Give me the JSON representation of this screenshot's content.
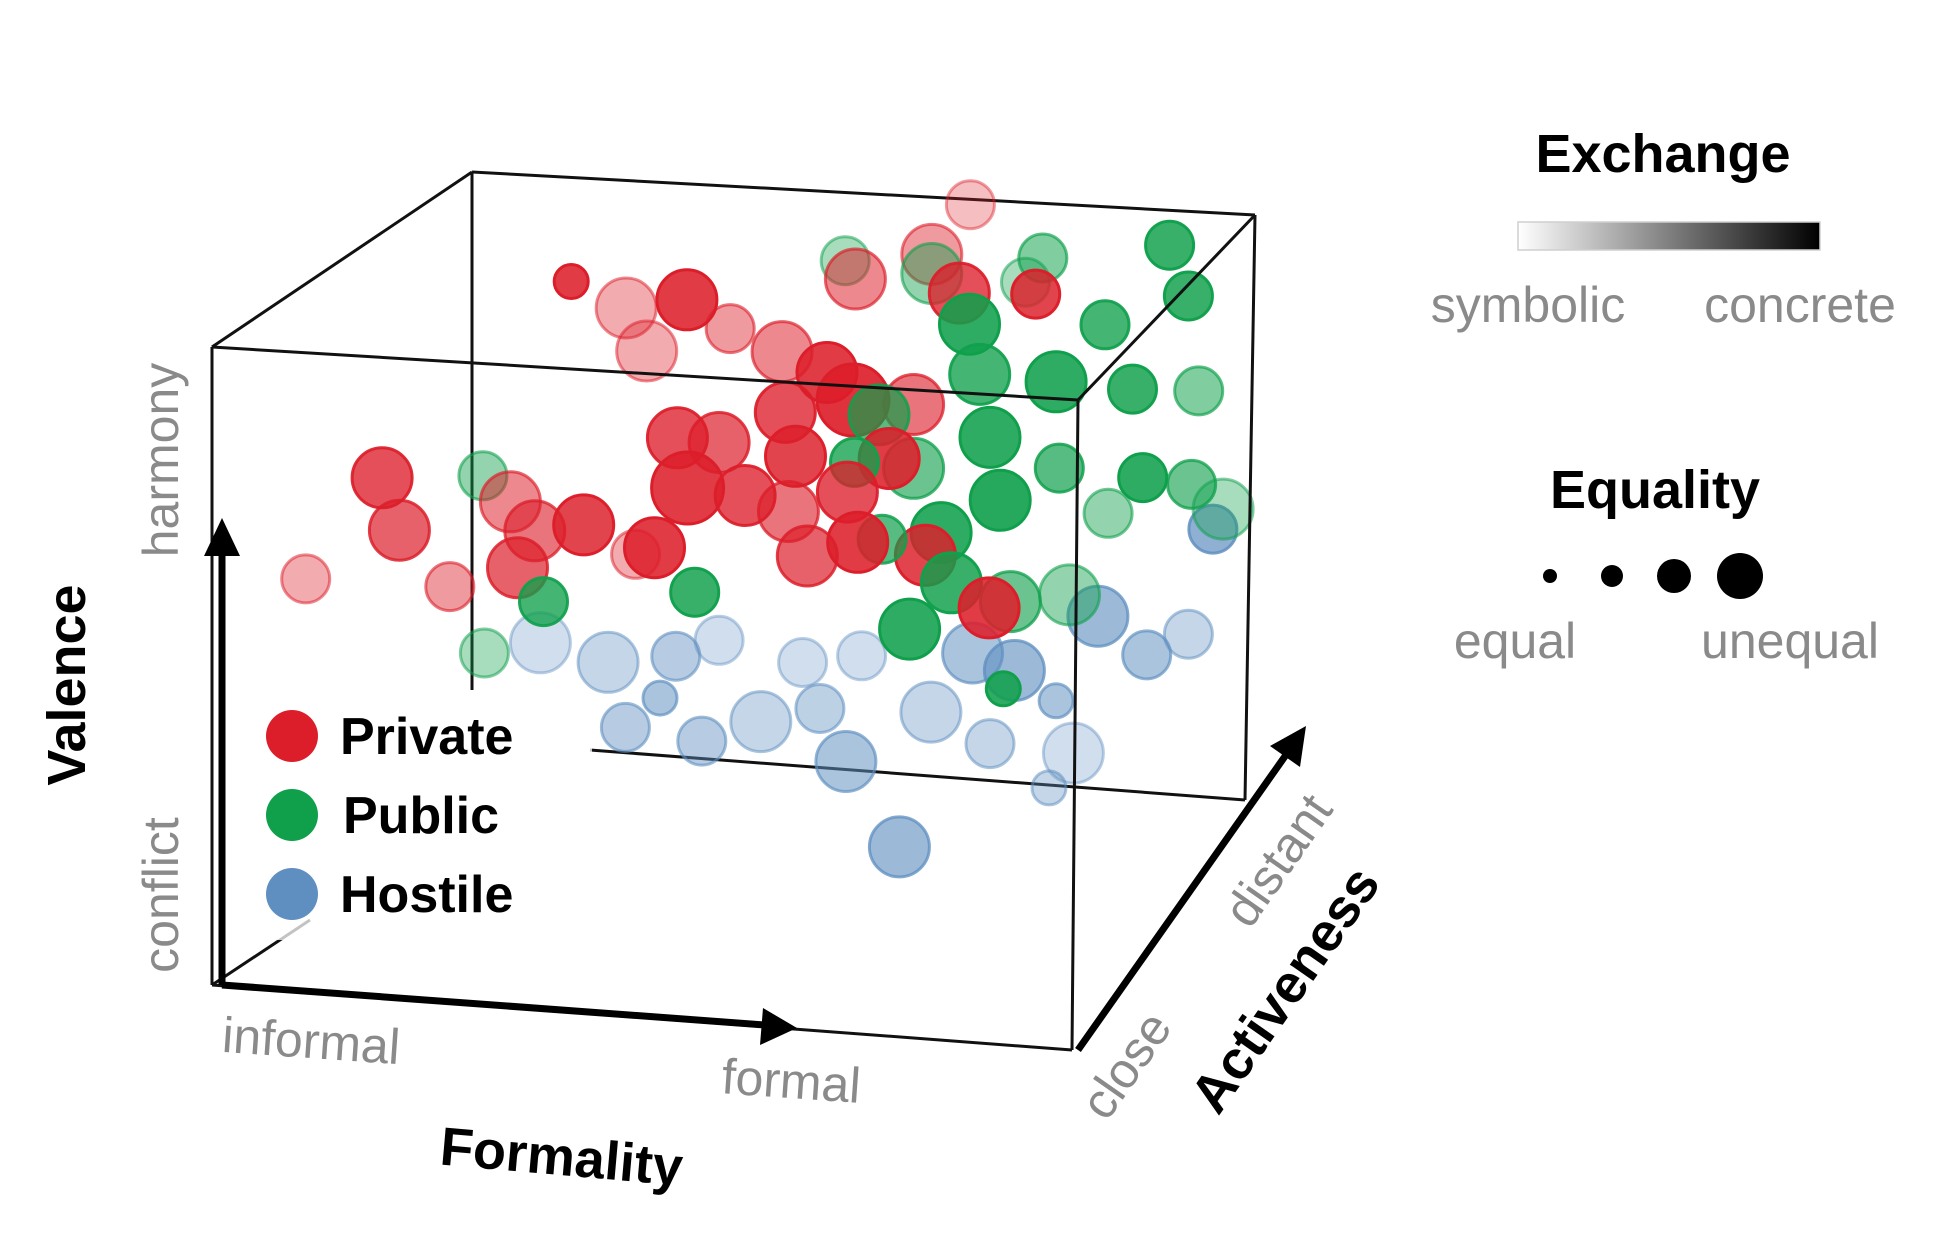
{
  "chart_data": {
    "type": "scatter",
    "subtype": "3d-bubble",
    "colors": {
      "Private": "#dc1e2a",
      "Public": "#10a04c",
      "Hostile": "#5f8fc0"
    },
    "axes": {
      "x": {
        "title": "Formality",
        "low": "informal",
        "high": "formal",
        "range": [
          0,
          1
        ]
      },
      "y": {
        "title": "Valence",
        "low": "conflict",
        "high": "harmony",
        "range": [
          0,
          1
        ]
      },
      "z": {
        "title": "Activeness",
        "low": "close",
        "high": "distant",
        "range": [
          0,
          1
        ]
      }
    },
    "legend": {
      "categories": [
        "Private",
        "Public",
        "Hostile"
      ],
      "exchange": {
        "title": "Exchange",
        "low": "symbolic",
        "high": "concrete"
      },
      "equality": {
        "title": "Equality",
        "low": "equal",
        "high": "unequal",
        "levels": [
          1,
          2,
          3,
          4
        ]
      }
    },
    "grid": false,
    "series": [
      {
        "name": "Private",
        "points": [
          {
            "x": 0.18,
            "y": 0.78,
            "z": 0.1,
            "size": 3,
            "exchange": 0.8
          },
          {
            "x": 0.2,
            "y": 0.7,
            "z": 0.1,
            "size": 3,
            "exchange": 0.7
          },
          {
            "x": 0.1,
            "y": 0.63,
            "z": 0.05,
            "size": 2,
            "exchange": 0.3
          },
          {
            "x": 0.32,
            "y": 0.74,
            "z": 0.15,
            "size": 3,
            "exchange": 0.5
          },
          {
            "x": 0.34,
            "y": 0.68,
            "z": 0.2,
            "size": 3,
            "exchange": 0.6
          },
          {
            "x": 0.32,
            "y": 0.62,
            "z": 0.2,
            "size": 3,
            "exchange": 0.7
          },
          {
            "x": 0.38,
            "y": 0.66,
            "z": 0.3,
            "size": 3,
            "exchange": 0.85
          },
          {
            "x": 0.3,
            "y": 0.9,
            "z": 0.7,
            "size": 1,
            "exchange": 0.9
          },
          {
            "x": 0.45,
            "y": 0.92,
            "z": 0.6,
            "size": 3,
            "exchange": 0.9
          },
          {
            "x": 0.42,
            "y": 0.87,
            "z": 0.5,
            "size": 3,
            "exchange": 0.3
          },
          {
            "x": 0.48,
            "y": 0.79,
            "z": 0.35,
            "size": 3,
            "exchange": 0.8
          },
          {
            "x": 0.5,
            "y": 0.73,
            "z": 0.3,
            "size": 4,
            "exchange": 0.9
          },
          {
            "x": 0.52,
            "y": 0.77,
            "z": 0.4,
            "size": 3,
            "exchange": 0.7
          },
          {
            "x": 0.55,
            "y": 0.69,
            "z": 0.4,
            "size": 3,
            "exchange": 0.8
          },
          {
            "x": 0.47,
            "y": 0.65,
            "z": 0.25,
            "size": 3,
            "exchange": 0.9
          },
          {
            "x": 0.58,
            "y": 0.79,
            "z": 0.5,
            "size": 3,
            "exchange": 0.8
          },
          {
            "x": 0.6,
            "y": 0.74,
            "z": 0.45,
            "size": 3,
            "exchange": 0.85
          },
          {
            "x": 0.62,
            "y": 0.84,
            "z": 0.55,
            "size": 3,
            "exchange": 0.9
          },
          {
            "x": 0.65,
            "y": 0.8,
            "z": 0.55,
            "size": 4,
            "exchange": 0.95
          },
          {
            "x": 0.66,
            "y": 0.69,
            "z": 0.45,
            "size": 3,
            "exchange": 0.8
          },
          {
            "x": 0.63,
            "y": 0.62,
            "z": 0.35,
            "size": 3,
            "exchange": 0.7
          },
          {
            "x": 0.7,
            "y": 0.73,
            "z": 0.5,
            "size": 3,
            "exchange": 0.9
          },
          {
            "x": 0.68,
            "y": 0.63,
            "z": 0.4,
            "size": 3,
            "exchange": 0.9
          },
          {
            "x": 0.75,
            "y": 0.6,
            "z": 0.45,
            "size": 3,
            "exchange": 0.85
          },
          {
            "x": 0.62,
            "y": 0.92,
            "z": 0.75,
            "size": 3,
            "exchange": 0.5
          },
          {
            "x": 0.7,
            "y": 0.95,
            "z": 0.8,
            "size": 3,
            "exchange": 0.4
          },
          {
            "x": 0.72,
            "y": 0.98,
            "z": 0.95,
            "size": 2,
            "exchange": 0.2
          },
          {
            "x": 0.74,
            "y": 0.91,
            "z": 0.75,
            "size": 3,
            "exchange": 0.8
          },
          {
            "x": 0.82,
            "y": 0.9,
            "z": 0.8,
            "size": 2,
            "exchange": 0.85
          },
          {
            "x": 0.84,
            "y": 0.56,
            "z": 0.35,
            "size": 3,
            "exchange": 0.9
          },
          {
            "x": 0.25,
            "y": 0.6,
            "z": 0.15,
            "size": 2,
            "exchange": 0.4
          },
          {
            "x": 0.38,
            "y": 0.9,
            "z": 0.6,
            "size": 3,
            "exchange": 0.3
          },
          {
            "x": 0.44,
            "y": 0.62,
            "z": 0.3,
            "size": 2,
            "exchange": 0.3
          },
          {
            "x": 0.56,
            "y": 0.85,
            "z": 0.6,
            "size": 3,
            "exchange": 0.5
          },
          {
            "x": 0.5,
            "y": 0.88,
            "z": 0.6,
            "size": 2,
            "exchange": 0.4
          },
          {
            "x": 0.6,
            "y": 0.67,
            "z": 0.4,
            "size": 3,
            "exchange": 0.6
          },
          {
            "x": 0.72,
            "y": 0.8,
            "z": 0.55,
            "size": 3,
            "exchange": 0.6
          }
        ]
      },
      {
        "name": "Public",
        "points": [
          {
            "x": 0.28,
            "y": 0.76,
            "z": 0.2,
            "size": 2,
            "exchange": 0.4
          },
          {
            "x": 0.35,
            "y": 0.57,
            "z": 0.2,
            "size": 2,
            "exchange": 0.8
          },
          {
            "x": 0.29,
            "y": 0.5,
            "z": 0.15,
            "size": 2,
            "exchange": 0.3
          },
          {
            "x": 0.5,
            "y": 0.55,
            "z": 0.35,
            "size": 2,
            "exchange": 0.85
          },
          {
            "x": 0.6,
            "y": 0.93,
            "z": 0.8,
            "size": 2,
            "exchange": 0.3
          },
          {
            "x": 0.66,
            "y": 0.72,
            "z": 0.5,
            "size": 2,
            "exchange": 0.8
          },
          {
            "x": 0.68,
            "y": 0.78,
            "z": 0.55,
            "size": 3,
            "exchange": 0.7
          },
          {
            "x": 0.72,
            "y": 0.7,
            "z": 0.55,
            "size": 3,
            "exchange": 0.6
          },
          {
            "x": 0.76,
            "y": 0.88,
            "z": 0.7,
            "size": 3,
            "exchange": 0.9
          },
          {
            "x": 0.78,
            "y": 0.82,
            "z": 0.65,
            "size": 3,
            "exchange": 0.8
          },
          {
            "x": 0.8,
            "y": 0.74,
            "z": 0.6,
            "size": 3,
            "exchange": 0.9
          },
          {
            "x": 0.76,
            "y": 0.62,
            "z": 0.5,
            "size": 3,
            "exchange": 0.9
          },
          {
            "x": 0.78,
            "y": 0.56,
            "z": 0.45,
            "size": 3,
            "exchange": 0.85
          },
          {
            "x": 0.82,
            "y": 0.66,
            "z": 0.55,
            "size": 3,
            "exchange": 0.95
          },
          {
            "x": 0.86,
            "y": 0.8,
            "z": 0.7,
            "size": 3,
            "exchange": 0.9
          },
          {
            "x": 0.88,
            "y": 0.7,
            "z": 0.6,
            "size": 2,
            "exchange": 0.7
          },
          {
            "x": 0.9,
            "y": 0.86,
            "z": 0.8,
            "size": 2,
            "exchange": 0.8
          },
          {
            "x": 0.94,
            "y": 0.78,
            "z": 0.75,
            "size": 2,
            "exchange": 0.85
          },
          {
            "x": 0.96,
            "y": 0.66,
            "z": 0.7,
            "size": 2,
            "exchange": 0.9
          },
          {
            "x": 0.98,
            "y": 0.88,
            "z": 0.9,
            "size": 2,
            "exchange": 0.85
          },
          {
            "x": 1.0,
            "y": 0.75,
            "z": 0.85,
            "size": 2,
            "exchange": 0.5
          },
          {
            "x": 1.0,
            "y": 0.62,
            "z": 0.8,
            "size": 2,
            "exchange": 0.6
          },
          {
            "x": 0.92,
            "y": 0.6,
            "z": 0.7,
            "size": 2,
            "exchange": 0.4
          },
          {
            "x": 0.84,
            "y": 0.52,
            "z": 0.5,
            "size": 3,
            "exchange": 0.6
          },
          {
            "x": 0.7,
            "y": 0.62,
            "z": 0.45,
            "size": 2,
            "exchange": 0.7
          },
          {
            "x": 0.8,
            "y": 0.9,
            "z": 0.85,
            "size": 2,
            "exchange": 0.3
          },
          {
            "x": 0.82,
            "y": 0.94,
            "z": 0.85,
            "size": 2,
            "exchange": 0.5
          },
          {
            "x": 0.7,
            "y": 0.92,
            "z": 0.8,
            "size": 3,
            "exchange": 0.4
          },
          {
            "x": 0.84,
            "y": 0.4,
            "z": 0.45,
            "size": 1,
            "exchange": 0.9
          },
          {
            "x": 0.9,
            "y": 0.52,
            "z": 0.55,
            "size": 3,
            "exchange": 0.4
          },
          {
            "x": 1.02,
            "y": 0.55,
            "z": 0.9,
            "size": 3,
            "exchange": 0.3
          },
          {
            "x": 0.74,
            "y": 0.5,
            "z": 0.4,
            "size": 3,
            "exchange": 0.9
          },
          {
            "x": 0.95,
            "y": 0.94,
            "z": 0.95,
            "size": 2,
            "exchange": 0.85
          }
        ]
      },
      {
        "name": "Hostile",
        "points": [
          {
            "x": 0.33,
            "y": 0.47,
            "z": 0.3,
            "size": 3,
            "exchange": 0.2
          },
          {
            "x": 0.4,
            "y": 0.43,
            "z": 0.35,
            "size": 3,
            "exchange": 0.3
          },
          {
            "x": 0.46,
            "y": 0.38,
            "z": 0.35,
            "size": 1,
            "exchange": 0.5
          },
          {
            "x": 0.47,
            "y": 0.43,
            "z": 0.4,
            "size": 2,
            "exchange": 0.4
          },
          {
            "x": 0.5,
            "y": 0.3,
            "z": 0.4,
            "size": 2,
            "exchange": 0.4
          },
          {
            "x": 0.56,
            "y": 0.32,
            "z": 0.45,
            "size": 3,
            "exchange": 0.3
          },
          {
            "x": 0.62,
            "y": 0.33,
            "z": 0.5,
            "size": 2,
            "exchange": 0.35
          },
          {
            "x": 0.65,
            "y": 0.25,
            "z": 0.5,
            "size": 3,
            "exchange": 0.5
          },
          {
            "x": 0.6,
            "y": 0.4,
            "z": 0.5,
            "size": 2,
            "exchange": 0.2
          },
          {
            "x": 0.72,
            "y": 0.14,
            "z": 0.45,
            "size": 3,
            "exchange": 0.6
          },
          {
            "x": 0.74,
            "y": 0.32,
            "z": 0.55,
            "size": 3,
            "exchange": 0.3
          },
          {
            "x": 0.78,
            "y": 0.4,
            "z": 0.6,
            "size": 3,
            "exchange": 0.5
          },
          {
            "x": 0.82,
            "y": 0.36,
            "z": 0.65,
            "size": 3,
            "exchange": 0.6
          },
          {
            "x": 0.86,
            "y": 0.3,
            "z": 0.7,
            "size": 1,
            "exchange": 0.5
          },
          {
            "x": 0.9,
            "y": 0.42,
            "z": 0.75,
            "size": 3,
            "exchange": 0.6
          },
          {
            "x": 0.88,
            "y": 0.22,
            "z": 0.7,
            "size": 3,
            "exchange": 0.2
          },
          {
            "x": 0.94,
            "y": 0.33,
            "z": 0.85,
            "size": 2,
            "exchange": 0.5
          },
          {
            "x": 0.98,
            "y": 0.35,
            "z": 0.9,
            "size": 2,
            "exchange": 0.3
          },
          {
            "x": 1.0,
            "y": 0.5,
            "z": 0.95,
            "size": 2,
            "exchange": 0.7
          },
          {
            "x": 0.52,
            "y": 0.46,
            "z": 0.4,
            "size": 2,
            "exchange": 0.2
          },
          {
            "x": 0.42,
            "y": 0.33,
            "z": 0.35,
            "size": 2,
            "exchange": 0.4
          },
          {
            "x": 0.86,
            "y": 0.18,
            "z": 0.65,
            "size": 1,
            "exchange": 0.3
          },
          {
            "x": 0.66,
            "y": 0.4,
            "z": 0.55,
            "size": 2,
            "exchange": 0.2
          },
          {
            "x": 0.8,
            "y": 0.26,
            "z": 0.6,
            "size": 2,
            "exchange": 0.3
          }
        ]
      }
    ]
  }
}
